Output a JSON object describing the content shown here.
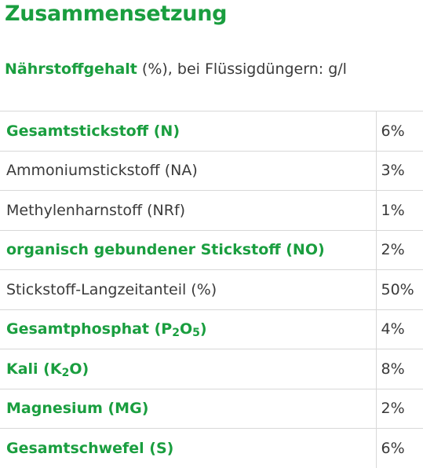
{
  "heading": "Zusammensetzung",
  "subheading": {
    "strong": "Nährstoffgehalt",
    "rest": " (%), bei Flüssigdüngern: g/l"
  },
  "colors": {
    "accent": "#1a9e3f",
    "text": "#3a3a3a",
    "divider": "#d8d8d8"
  },
  "rows": [
    {
      "label": "Gesamtstickstoff (N)",
      "value": "6%",
      "emphasis": true
    },
    {
      "label": "Ammoniumstickstoff (NA)",
      "value": "3%",
      "emphasis": false
    },
    {
      "label": "Methylenharnstoff (NRf)",
      "value": "1%",
      "emphasis": false
    },
    {
      "label": "organisch gebundener Stickstoff (NO)",
      "value": "2%",
      "emphasis": true
    },
    {
      "label": "Stickstoff-Langzeitanteil (%)",
      "value": "50%",
      "emphasis": false
    },
    {
      "label": "Gesamtphosphat (P",
      "sub1": "2",
      "mid": "O",
      "sub2": "5",
      "tail": ")",
      "value": "4%",
      "emphasis": true
    },
    {
      "label": "Kali (K",
      "sub1": "2",
      "mid": "O)",
      "value": "8%",
      "emphasis": true
    },
    {
      "label": "Magnesium (MG)",
      "value": "2%",
      "emphasis": true
    },
    {
      "label": "Gesamtschwefel (S)",
      "value": "6%",
      "emphasis": true
    }
  ]
}
